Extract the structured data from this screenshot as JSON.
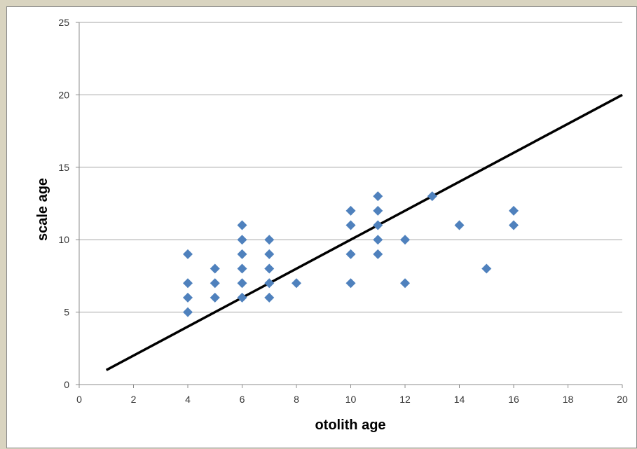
{
  "chart_data": {
    "type": "scatter",
    "title": "",
    "xlabel": "otolith age",
    "ylabel": "scale age",
    "xlim": [
      0,
      20
    ],
    "ylim": [
      0,
      25
    ],
    "xticks": [
      "0",
      "2",
      "4",
      "6",
      "8",
      "10",
      "12",
      "14",
      "16",
      "18",
      "20"
    ],
    "yticks": [
      "0",
      "5",
      "10",
      "15",
      "20",
      "25"
    ],
    "grid": "horizontal",
    "legend": "none",
    "marker_color": "#4f81bd",
    "line_color": "#000000",
    "points": [
      [
        4,
        9
      ],
      [
        4,
        7
      ],
      [
        4,
        6
      ],
      [
        4,
        5
      ],
      [
        5,
        8
      ],
      [
        5,
        7
      ],
      [
        5,
        6
      ],
      [
        6,
        11
      ],
      [
        6,
        10
      ],
      [
        6,
        9
      ],
      [
        6,
        8
      ],
      [
        6,
        7
      ],
      [
        6,
        6
      ],
      [
        7,
        10
      ],
      [
        7,
        9
      ],
      [
        7,
        8
      ],
      [
        7,
        7
      ],
      [
        7,
        6
      ],
      [
        8,
        7
      ],
      [
        10,
        12
      ],
      [
        10,
        11
      ],
      [
        10,
        9
      ],
      [
        10,
        7
      ],
      [
        11,
        13
      ],
      [
        11,
        12
      ],
      [
        11,
        11
      ],
      [
        11,
        10
      ],
      [
        11,
        9
      ],
      [
        12,
        10
      ],
      [
        12,
        7
      ],
      [
        13,
        13
      ],
      [
        14,
        11
      ],
      [
        15,
        8
      ],
      [
        16,
        12
      ],
      [
        16,
        11
      ]
    ],
    "line": [
      [
        1,
        1
      ],
      [
        20,
        20
      ]
    ]
  }
}
